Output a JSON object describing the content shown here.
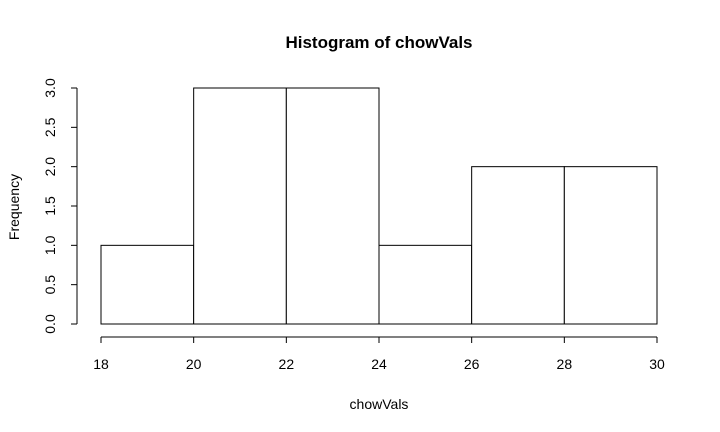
{
  "chart_data": {
    "type": "bar",
    "histogram": true,
    "title": "Histogram of chowVals",
    "xlabel": "chowVals",
    "ylabel": "Frequency",
    "bins": [
      {
        "from": 18,
        "to": 20,
        "value": 1
      },
      {
        "from": 20,
        "to": 22,
        "value": 3
      },
      {
        "from": 22,
        "to": 24,
        "value": 3
      },
      {
        "from": 24,
        "to": 26,
        "value": 1
      },
      {
        "from": 26,
        "to": 28,
        "value": 2
      },
      {
        "from": 28,
        "to": 30,
        "value": 2
      }
    ],
    "xlim": [
      18,
      30
    ],
    "ylim": [
      0,
      3
    ],
    "xticks": [
      "18",
      "20",
      "22",
      "24",
      "26",
      "28",
      "30"
    ],
    "yticks": [
      "0.0",
      "0.5",
      "1.0",
      "1.5",
      "2.0",
      "2.5",
      "3.0"
    ],
    "grid": false,
    "bar_fill": "#ffffff",
    "bar_stroke": "#000000"
  }
}
